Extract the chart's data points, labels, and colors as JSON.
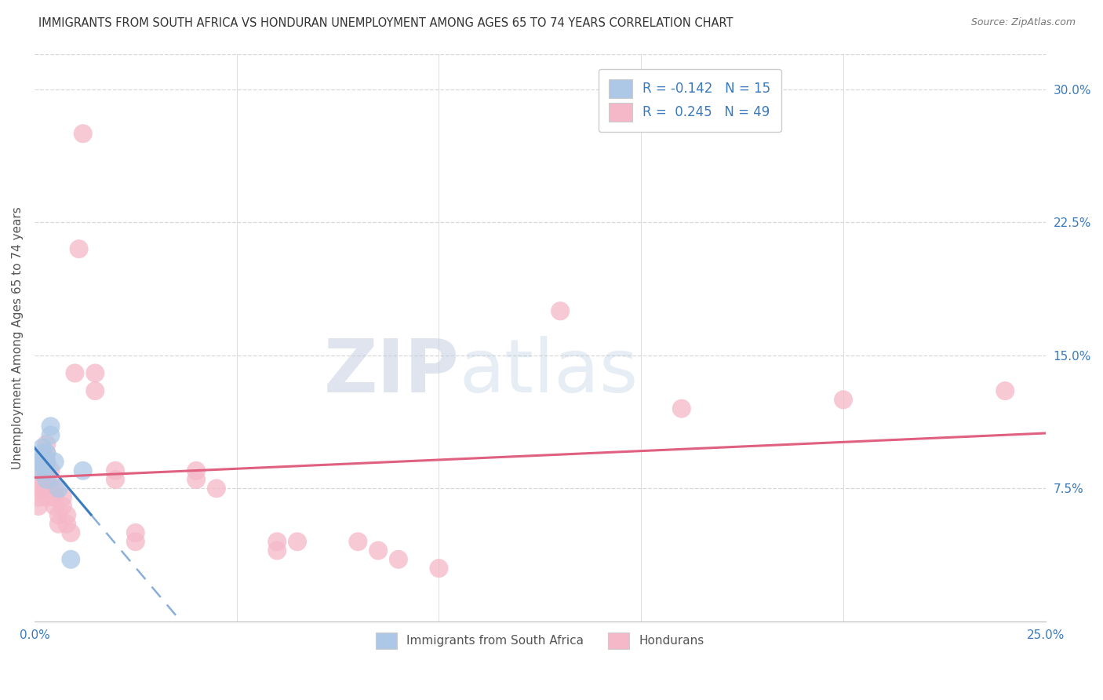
{
  "title": "IMMIGRANTS FROM SOUTH AFRICA VS HONDURAN UNEMPLOYMENT AMONG AGES 65 TO 74 YEARS CORRELATION CHART",
  "source": "Source: ZipAtlas.com",
  "ylabel": "Unemployment Among Ages 65 to 74 years",
  "xlim": [
    0.0,
    0.25
  ],
  "ylim": [
    0.0,
    0.32
  ],
  "xtick_vals": [
    0.0,
    0.05,
    0.1,
    0.15,
    0.2,
    0.25
  ],
  "xticklabels": [
    "0.0%",
    "",
    "",
    "",
    "",
    "25.0%"
  ],
  "ytick_right_labels": [
    "7.5%",
    "15.0%",
    "22.5%",
    "30.0%"
  ],
  "ytick_right_values": [
    0.075,
    0.15,
    0.225,
    0.3
  ],
  "legend1_label": "R = -0.142   N = 15",
  "legend2_label": "R =  0.245   N = 49",
  "legend_bottom1": "Immigrants from South Africa",
  "legend_bottom2": "Hondurans",
  "blue_color": "#adc8e6",
  "pink_color": "#f5b8c8",
  "blue_line_color": "#3a7abf",
  "pink_line_color": "#e06080",
  "blue_scatter": [
    [
      0.001,
      0.085
    ],
    [
      0.001,
      0.09
    ],
    [
      0.002,
      0.098
    ],
    [
      0.002,
      0.095
    ],
    [
      0.002,
      0.09
    ],
    [
      0.003,
      0.095
    ],
    [
      0.003,
      0.09
    ],
    [
      0.003,
      0.085
    ],
    [
      0.003,
      0.08
    ],
    [
      0.004,
      0.11
    ],
    [
      0.004,
      0.105
    ],
    [
      0.005,
      0.09
    ],
    [
      0.006,
      0.075
    ],
    [
      0.009,
      0.035
    ],
    [
      0.012,
      0.085
    ]
  ],
  "pink_scatter": [
    [
      0.001,
      0.065
    ],
    [
      0.001,
      0.07
    ],
    [
      0.001,
      0.075
    ],
    [
      0.002,
      0.075
    ],
    [
      0.002,
      0.08
    ],
    [
      0.002,
      0.085
    ],
    [
      0.002,
      0.09
    ],
    [
      0.003,
      0.07
    ],
    [
      0.003,
      0.075
    ],
    [
      0.003,
      0.08
    ],
    [
      0.003,
      0.09
    ],
    [
      0.003,
      0.095
    ],
    [
      0.003,
      0.1
    ],
    [
      0.004,
      0.075
    ],
    [
      0.004,
      0.08
    ],
    [
      0.004,
      0.085
    ],
    [
      0.005,
      0.065
    ],
    [
      0.005,
      0.07
    ],
    [
      0.005,
      0.075
    ],
    [
      0.006,
      0.055
    ],
    [
      0.006,
      0.06
    ],
    [
      0.007,
      0.065
    ],
    [
      0.007,
      0.07
    ],
    [
      0.008,
      0.055
    ],
    [
      0.008,
      0.06
    ],
    [
      0.009,
      0.05
    ],
    [
      0.01,
      0.14
    ],
    [
      0.011,
      0.21
    ],
    [
      0.012,
      0.275
    ],
    [
      0.015,
      0.14
    ],
    [
      0.015,
      0.13
    ],
    [
      0.02,
      0.08
    ],
    [
      0.02,
      0.085
    ],
    [
      0.025,
      0.045
    ],
    [
      0.025,
      0.05
    ],
    [
      0.04,
      0.08
    ],
    [
      0.04,
      0.085
    ],
    [
      0.045,
      0.075
    ],
    [
      0.06,
      0.045
    ],
    [
      0.06,
      0.04
    ],
    [
      0.065,
      0.045
    ],
    [
      0.08,
      0.045
    ],
    [
      0.085,
      0.04
    ],
    [
      0.09,
      0.035
    ],
    [
      0.1,
      0.03
    ],
    [
      0.13,
      0.175
    ],
    [
      0.16,
      0.12
    ],
    [
      0.2,
      0.125
    ],
    [
      0.24,
      0.13
    ]
  ],
  "watermark_zip": "ZIP",
  "watermark_atlas": "atlas",
  "background_color": "#ffffff",
  "grid_color": "#d8d8d8"
}
